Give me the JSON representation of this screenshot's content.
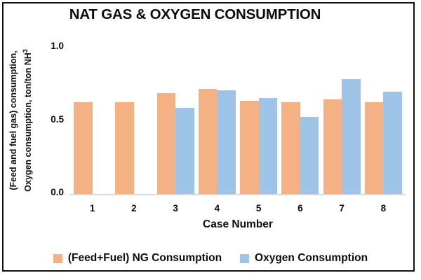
{
  "ui": {
    "y_tick_labels": [
      "1.0",
      "0.5",
      "0.0"
    ],
    "y_axis_label_line1": "(Feed and fuel gas) consumption,",
    "y_axis_label_line2_prefix": "Oxygen consumption, ton/ton NH",
    "y_axis_label_superscript": "3"
  },
  "chart_data": {
    "type": "bar",
    "title": "NAT GAS & OXYGEN CONSUMPTION",
    "categories": [
      "1",
      "2",
      "3",
      "4",
      "5",
      "6",
      "7",
      "8"
    ],
    "series": [
      {
        "name": "(Feed+Fuel) NG Consumption",
        "color": "#F4B183",
        "values": [
          0.63,
          0.63,
          0.69,
          0.72,
          0.64,
          0.63,
          0.65,
          0.63
        ]
      },
      {
        "name": "Oxygen Consumption",
        "color": "#9DC3E6",
        "values": [
          0,
          0,
          0.59,
          0.71,
          0.66,
          0.53,
          0.79,
          0.7
        ]
      }
    ],
    "xlabel": "Case Number",
    "ylabel": "(Feed and fuel gas) consumption, Oxygen consumption, ton/ton NH³",
    "ylim": [
      0,
      1.0
    ],
    "y_ticks": [
      0.0,
      0.5,
      1.0
    ],
    "grid": false,
    "legend_position": "bottom",
    "axis_line_color": "#D9D9D9",
    "text_color": "#0D0D0D",
    "frame_border_color": "#111111"
  }
}
